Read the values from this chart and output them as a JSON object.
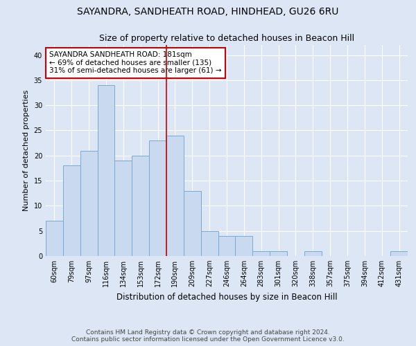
{
  "title": "SAYANDRA, SANDHEATH ROAD, HINDHEAD, GU26 6RU",
  "subtitle": "Size of property relative to detached houses in Beacon Hill",
  "xlabel": "Distribution of detached houses by size in Beacon Hill",
  "ylabel": "Number of detached properties",
  "categories": [
    "60sqm",
    "79sqm",
    "97sqm",
    "116sqm",
    "134sqm",
    "153sqm",
    "172sqm",
    "190sqm",
    "209sqm",
    "227sqm",
    "246sqm",
    "264sqm",
    "283sqm",
    "301sqm",
    "320sqm",
    "338sqm",
    "357sqm",
    "375sqm",
    "394sqm",
    "412sqm",
    "431sqm"
  ],
  "values": [
    7,
    18,
    21,
    34,
    19,
    20,
    23,
    24,
    13,
    5,
    4,
    4,
    1,
    1,
    0,
    1,
    0,
    0,
    0,
    0,
    1
  ],
  "bar_color": "#c9d9f0",
  "bar_edge_color": "#7aaad0",
  "reference_line_color": "#cc0000",
  "annotation_text": "SAYANDRA SANDHEATH ROAD: 181sqm\n← 69% of detached houses are smaller (135)\n31% of semi-detached houses are larger (61) →",
  "annotation_box_color": "#ffffff",
  "annotation_box_edge_color": "#cc0000",
  "ylim": [
    0,
    42
  ],
  "yticks": [
    0,
    5,
    10,
    15,
    20,
    25,
    30,
    35,
    40
  ],
  "bg_color": "#dce6f5",
  "plot_bg_color": "#dce6f5",
  "footer_line1": "Contains HM Land Registry data © Crown copyright and database right 2024.",
  "footer_line2": "Contains public sector information licensed under the Open Government Licence v3.0.",
  "title_fontsize": 10,
  "subtitle_fontsize": 9,
  "annotation_fontsize": 7.5,
  "footer_fontsize": 6.5,
  "ylabel_fontsize": 8,
  "xlabel_fontsize": 8.5,
  "tick_fontsize": 7
}
